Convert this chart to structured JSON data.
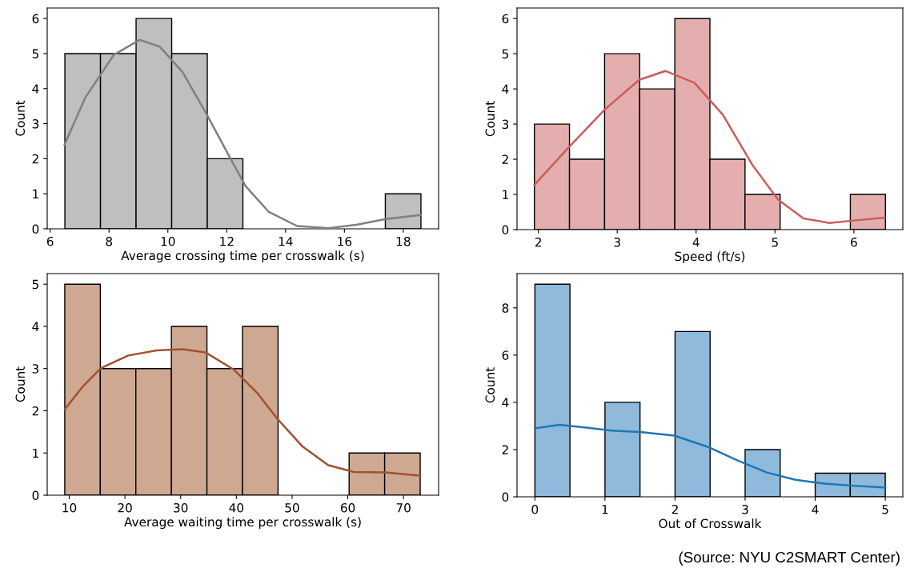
{
  "chart_data": [
    {
      "type": "histogram",
      "xlabel": "Average crossing time per crosswalk (s)",
      "ylabel": "Count",
      "bins": [
        6.5,
        7.71,
        8.92,
        10.13,
        11.34,
        12.55,
        13.76,
        14.97,
        16.18,
        17.39,
        18.6
      ],
      "values": [
        5,
        5,
        6,
        5,
        2,
        0,
        0,
        0,
        0,
        1
      ],
      "color": "#bfbfbf",
      "xlim": [
        5.9,
        19.2
      ],
      "xticks": [
        6,
        8,
        10,
        12,
        14,
        16,
        18
      ],
      "ylim": [
        0,
        6.3
      ],
      "yticks": [
        0,
        1,
        2,
        3,
        4,
        5,
        6
      ],
      "grid": false,
      "series": [
        {
          "type": "line",
          "color": "#808080",
          "x": [
            6.49,
            7.19,
            8.16,
            9.04,
            9.72,
            10.5,
            11.33,
            12.06,
            12.64,
            13.42,
            14.39,
            15.46,
            16.44,
            17.41,
            18.58
          ],
          "values": [
            2.4,
            3.74,
            4.96,
            5.39,
            5.2,
            4.47,
            3.25,
            2.11,
            1.22,
            0.49,
            0.08,
            0.02,
            0.12,
            0.28,
            0.39
          ]
        }
      ]
    },
    {
      "type": "histogram",
      "xlabel": "Speed (ft/s)",
      "ylabel": "Count",
      "bins": [
        1.95,
        2.395,
        2.84,
        3.285,
        3.73,
        4.175,
        4.62,
        5.065,
        5.51,
        5.955,
        6.4
      ],
      "values": [
        3,
        2,
        5,
        4,
        6,
        2,
        1,
        0,
        0,
        1
      ],
      "color": "#e4aeae",
      "xlim": [
        1.73,
        6.62
      ],
      "xticks": [
        2,
        3,
        4,
        5,
        6
      ],
      "ylim": [
        0,
        6.3
      ],
      "yticks": [
        0,
        1,
        2,
        3,
        4,
        5,
        6
      ],
      "grid": false,
      "series": [
        {
          "type": "line",
          "color": "#cd5c5c",
          "x": [
            1.95,
            2.39,
            2.85,
            3.28,
            3.61,
            3.98,
            4.34,
            4.71,
            5.04,
            5.36,
            5.69,
            6.05,
            6.39
          ],
          "values": [
            1.27,
            2.35,
            3.43,
            4.26,
            4.51,
            4.17,
            3.26,
            1.85,
            0.85,
            0.32,
            0.19,
            0.27,
            0.34
          ]
        }
      ]
    },
    {
      "type": "histogram",
      "xlabel": "Average waiting time per crosswalk (s)",
      "ylabel": "Count",
      "bins": [
        9.2,
        15.58,
        21.96,
        28.34,
        34.72,
        41.1,
        47.48,
        53.86,
        60.24,
        66.62,
        73.0
      ],
      "values": [
        5,
        3,
        3,
        4,
        3,
        4,
        0,
        0,
        1,
        1
      ],
      "color": "#cfa892",
      "xlim": [
        6.05,
        76.3
      ],
      "xticks": [
        10,
        20,
        30,
        40,
        50,
        60,
        70
      ],
      "ylim": [
        0,
        5.25
      ],
      "yticks": [
        0,
        1,
        2,
        3,
        4,
        5
      ],
      "grid": false,
      "series": [
        {
          "type": "line",
          "color": "#a0522d",
          "x": [
            9.23,
            12.4,
            15.7,
            20.6,
            25.7,
            30.4,
            34.5,
            39.6,
            43.7,
            47.3,
            51.9,
            56.5,
            61.1,
            66.8,
            73.0
          ],
          "values": [
            2.04,
            2.57,
            3.01,
            3.31,
            3.43,
            3.46,
            3.38,
            2.97,
            2.43,
            1.82,
            1.15,
            0.71,
            0.55,
            0.54,
            0.46
          ]
        }
      ]
    },
    {
      "type": "histogram",
      "xlabel": "Out of Crosswalk",
      "ylabel": "Count",
      "bins": [
        0,
        0.5,
        1,
        1.5,
        2,
        2.5,
        3,
        3.5,
        4,
        4.5,
        5
      ],
      "values": [
        9,
        0,
        4,
        0,
        7,
        0,
        2,
        0,
        1,
        1
      ],
      "color": "#8fbadb",
      "xlim": [
        -0.255,
        5.25
      ],
      "xticks": [
        0,
        1,
        2,
        3,
        4,
        5
      ],
      "ylim": [
        0,
        9.45
      ],
      "yticks": [
        0,
        2,
        4,
        6,
        8
      ],
      "grid": false,
      "series": [
        {
          "type": "line",
          "color": "#1f77b4",
          "x": [
            0,
            0.35,
            0.76,
            1.09,
            1.5,
            1.99,
            2.49,
            2.9,
            3.31,
            3.72,
            4.13,
            4.54,
            5.0
          ],
          "values": [
            2.9,
            3.05,
            2.92,
            2.8,
            2.74,
            2.59,
            2.09,
            1.53,
            1.03,
            0.72,
            0.56,
            0.47,
            0.39
          ]
        }
      ],
      "annotations": [
        "(Source: NYU C2SMART Center)"
      ]
    }
  ]
}
